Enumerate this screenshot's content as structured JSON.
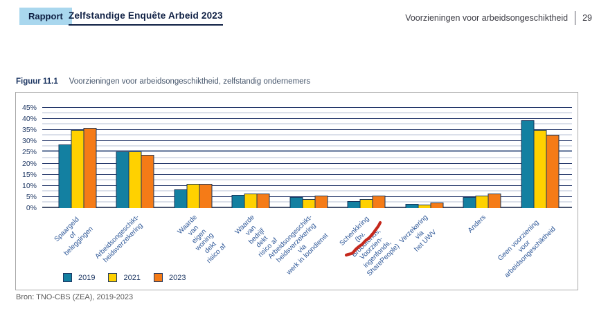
{
  "header": {
    "report_badge": "Rapport",
    "report_title": "Zelfstandige Enquête Arbeid 2023",
    "section_title": "Voorzieningen voor arbeidsongeschiktheid",
    "page_number": "29"
  },
  "figure": {
    "label": "Figuur 11.1",
    "caption": "Voorzieningen voor arbeidsongeschiktheid, zelfstandig ondernemers",
    "source": "Bron: TNO-CBS (ZEA), 2019-2023"
  },
  "chart_data": {
    "type": "bar",
    "title": "Voorzieningen voor arbeidsongeschiktheid, zelfstandig ondernemers",
    "categories": [
      "Spaargeld of\nbeleggingen",
      "Arbeidsongeschikt-\nheidsverzekering",
      "Waarde van eigen\nwoning dekt risico af",
      "Waarde van\nbedrijf dekt risico af",
      "Arbeidsongeschikt-\nheidsverzekering via\nwerk in loondienst",
      "Schenkkring\n(bv. Broodfonds, Voorzien-\ningenfonds, SharePeople)",
      "Verzekering via\nhet UWV",
      "Anders",
      "Geen voorziening voor\narbeidsongeschiktheid"
    ],
    "series": [
      {
        "name": "2019",
        "color": "#1380a1",
        "values": [
          28.5,
          25.5,
          8.5,
          6,
          5,
          3,
          2,
          5,
          39.5
        ]
      },
      {
        "name": "2021",
        "color": "#ffd100",
        "values": [
          35,
          25.5,
          11,
          6.5,
          4,
          4,
          1.5,
          5.5,
          35
        ]
      },
      {
        "name": "2023",
        "color": "#f57b17",
        "values": [
          36,
          24,
          11,
          6.5,
          5.5,
          5.5,
          2.5,
          6.5,
          33
        ]
      }
    ],
    "xlabel": "",
    "ylabel": "",
    "ylim": [
      0,
      45
    ],
    "ytick_step": 5,
    "ytick_minor_step": 2.5,
    "ytick_format": "percent",
    "grid": true,
    "emphasized_gridline": 25,
    "legend_position": "bottom-left",
    "annotation": {
      "type": "hand-drawn-red-squiggle",
      "target_label_part": "SharePeople",
      "color": "#c5281c"
    }
  },
  "colors": {
    "badge_background": "#a9d7ee",
    "header_text": "#0e1f43",
    "axis_text": "#1f3864",
    "bar_border": "#16365c"
  }
}
